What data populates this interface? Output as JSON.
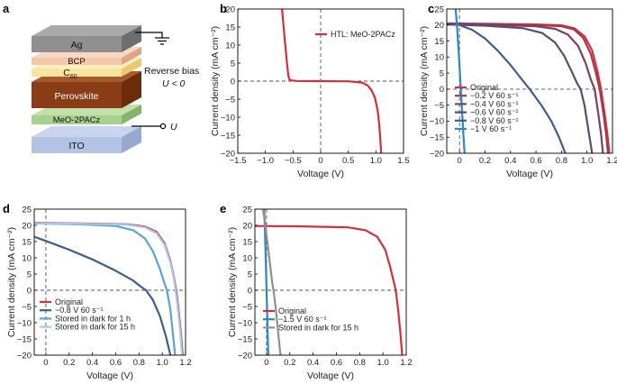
{
  "panel_labels": [
    "a",
    "b",
    "c",
    "d",
    "e"
  ],
  "schematic": {
    "layers": [
      "Ag",
      "BCP",
      "C",
      "Perovskite",
      "MeO-2PACz",
      "ITO"
    ],
    "c60_subscript": "60",
    "bias_line1": "Reverse bias",
    "bias_line2": "U < 0",
    "electrode_label": "U",
    "colors": {
      "Ag": "#8f8f8f",
      "BCP": "#f4c6aa",
      "C60": "#fbe3a0",
      "Perovskite": "#8a3c14",
      "MeO-2PACz": "#a9d18e",
      "ITO": "#b4c3e3"
    }
  },
  "chart_data": [
    {
      "id": "b",
      "type": "line",
      "xlabel": "Voltage (V)",
      "ylabel": "Current density (mA cm⁻²)",
      "xlim": [
        -1.5,
        1.5
      ],
      "ylim": [
        -20,
        20
      ],
      "xticks": [
        -1.5,
        -1.0,
        -0.5,
        0,
        0.5,
        1.0,
        1.5
      ],
      "xtick_labels": [
        "−1.5",
        "−1.0",
        "−0.5",
        "0",
        "0.5",
        "1.0",
        "1.5"
      ],
      "yticks": [
        -20,
        -15,
        -10,
        -5,
        0,
        5,
        10,
        15,
        20
      ],
      "ytick_labels": [
        "−20",
        "−15",
        "−10",
        "−5",
        "0",
        "5",
        "10",
        "15",
        "20"
      ],
      "series": [
        {
          "name": "HTL: MeO-2PACz",
          "color": "#d62f3a",
          "points": [
            [
              -0.7,
              20
            ],
            [
              -0.67,
              15
            ],
            [
              -0.64,
              10
            ],
            [
              -0.61,
              5
            ],
            [
              -0.585,
              1.5
            ],
            [
              -0.56,
              0.3
            ],
            [
              -0.45,
              0.05
            ],
            [
              0,
              0
            ],
            [
              0.5,
              -0.05
            ],
            [
              0.75,
              -0.4
            ],
            [
              0.85,
              -1.2
            ],
            [
              0.92,
              -2.5
            ],
            [
              0.98,
              -4.5
            ],
            [
              1.03,
              -8
            ],
            [
              1.06,
              -12
            ],
            [
              1.08,
              -16
            ],
            [
              1.095,
              -20
            ]
          ]
        }
      ]
    },
    {
      "id": "c",
      "type": "line",
      "xlabel": "Voltage (V)",
      "ylabel": "Current density (mA cm⁻²)",
      "xlim": [
        -0.1,
        1.2
      ],
      "ylim": [
        -20,
        25
      ],
      "xticks": [
        0,
        0.2,
        0.4,
        0.6,
        0.8,
        1.0,
        1.2
      ],
      "xtick_labels": [
        "0",
        "0.2",
        "0.4",
        "0.6",
        "0.8",
        "1.0",
        "1.2"
      ],
      "yticks": [
        -20,
        -15,
        -10,
        -5,
        0,
        5,
        10,
        15,
        20,
        25
      ],
      "ytick_labels": [
        "−20",
        "−15",
        "−10",
        "−5",
        "0",
        "5",
        "10",
        "15",
        "20",
        "25"
      ],
      "series": [
        {
          "name": "Original",
          "color": "#d62f3a",
          "points": [
            [
              -0.1,
              20.5
            ],
            [
              0.2,
              20.4
            ],
            [
              0.6,
              20.2
            ],
            [
              0.8,
              19.9
            ],
            [
              0.9,
              19
            ],
            [
              0.98,
              16.5
            ],
            [
              1.04,
              12
            ],
            [
              1.08,
              6
            ],
            [
              1.11,
              0
            ],
            [
              1.14,
              -8
            ],
            [
              1.16,
              -14
            ],
            [
              1.175,
              -20
            ]
          ]
        },
        {
          "name": "−0.2 V 60 s⁻¹",
          "color": "#a8374c",
          "points": [
            [
              -0.1,
              20.4
            ],
            [
              0.2,
              20.3
            ],
            [
              0.6,
              20
            ],
            [
              0.8,
              19.6
            ],
            [
              0.9,
              18.6
            ],
            [
              0.97,
              16
            ],
            [
              1.03,
              11
            ],
            [
              1.07,
              5
            ],
            [
              1.1,
              0
            ],
            [
              1.13,
              -8
            ],
            [
              1.15,
              -14
            ],
            [
              1.165,
              -20
            ]
          ]
        },
        {
          "name": "−0.4 V 60 s⁻¹",
          "color": "#7c3f5e",
          "points": [
            [
              -0.1,
              20.3
            ],
            [
              0.2,
              20.1
            ],
            [
              0.6,
              19.6
            ],
            [
              0.75,
              18.8
            ],
            [
              0.85,
              17
            ],
            [
              0.93,
              13.5
            ],
            [
              0.99,
              8
            ],
            [
              1.03,
              3
            ],
            [
              1.06,
              0
            ],
            [
              1.09,
              -8
            ],
            [
              1.11,
              -14
            ],
            [
              1.125,
              -20
            ]
          ]
        },
        {
          "name": "−0.6 V 60 s⁻¹",
          "color": "#5d4a73",
          "points": [
            [
              -0.1,
              20.2
            ],
            [
              0.2,
              19.8
            ],
            [
              0.5,
              19
            ],
            [
              0.65,
              17.5
            ],
            [
              0.75,
              14.5
            ],
            [
              0.82,
              10.5
            ],
            [
              0.88,
              5.5
            ],
            [
              0.92,
              2
            ],
            [
              0.95,
              0
            ],
            [
              0.98,
              -5
            ],
            [
              1.0,
              -10
            ],
            [
              1.02,
              -15
            ],
            [
              1.04,
              -20
            ]
          ]
        },
        {
          "name": "−0.8 V 60 s⁻¹",
          "color": "#3c5d91",
          "points": [
            [
              -0.05,
              20.5
            ],
            [
              0.0,
              20
            ],
            [
              0.1,
              18.5
            ],
            [
              0.2,
              15.8
            ],
            [
              0.3,
              12
            ],
            [
              0.4,
              7.5
            ],
            [
              0.5,
              2.5
            ],
            [
              0.55,
              0
            ],
            [
              0.65,
              -5.5
            ],
            [
              0.72,
              -10
            ],
            [
              0.78,
              -15
            ],
            [
              0.83,
              -20
            ]
          ]
        },
        {
          "name": "−1 V 60 s⁻¹",
          "color": "#2f86c4",
          "points": [
            [
              -0.03,
              25
            ],
            [
              -0.02,
              20
            ],
            [
              -0.01,
              14
            ],
            [
              0,
              7
            ],
            [
              0.01,
              0
            ],
            [
              0.02,
              -7
            ],
            [
              0.03,
              -14
            ],
            [
              0.04,
              -20
            ]
          ]
        }
      ]
    },
    {
      "id": "d",
      "type": "line",
      "xlabel": "Voltage (V)",
      "ylabel": "Current density (mA cm⁻²)",
      "xlim": [
        -0.1,
        1.2
      ],
      "ylim": [
        -20,
        25
      ],
      "xticks": [
        0,
        0.2,
        0.4,
        0.6,
        0.8,
        1.0,
        1.2
      ],
      "xtick_labels": [
        "0",
        "0.2",
        "0.4",
        "0.6",
        "0.8",
        "1.0",
        "1.2"
      ],
      "yticks": [
        -20,
        -15,
        -10,
        -5,
        0,
        5,
        10,
        15,
        20,
        25
      ],
      "ytick_labels": [
        "−20",
        "−15",
        "−10",
        "−5",
        "0",
        "5",
        "10",
        "15",
        "20",
        "25"
      ],
      "series": [
        {
          "name": "Original",
          "color": "#d62f3a",
          "points": [
            [
              -0.1,
              20.8
            ],
            [
              0.3,
              20.6
            ],
            [
              0.7,
              20.3
            ],
            [
              0.85,
              19.6
            ],
            [
              0.95,
              18
            ],
            [
              1.02,
              14.5
            ],
            [
              1.07,
              9
            ],
            [
              1.1,
              4
            ],
            [
              1.12,
              0
            ],
            [
              1.14,
              -6
            ],
            [
              1.16,
              -13
            ],
            [
              1.175,
              -20
            ]
          ]
        },
        {
          "name": "−0.8 V 60 s⁻¹",
          "color": "#3c5d91",
          "points": [
            [
              -0.1,
              16.5
            ],
            [
              0,
              15.2
            ],
            [
              0.2,
              12.5
            ],
            [
              0.4,
              9.5
            ],
            [
              0.6,
              6
            ],
            [
              0.75,
              3
            ],
            [
              0.82,
              1
            ],
            [
              0.86,
              0
            ],
            [
              0.92,
              -3
            ],
            [
              0.98,
              -8
            ],
            [
              1.03,
              -14
            ],
            [
              1.07,
              -20
            ]
          ]
        },
        {
          "name": "Stored in dark for 1 h",
          "color": "#5aa3d8",
          "points": [
            [
              -0.1,
              20.6
            ],
            [
              0.3,
              20.3
            ],
            [
              0.6,
              19.8
            ],
            [
              0.75,
              18.5
            ],
            [
              0.85,
              16
            ],
            [
              0.92,
              12
            ],
            [
              0.98,
              6.5
            ],
            [
              1.02,
              2
            ],
            [
              1.04,
              0
            ],
            [
              1.07,
              -6
            ],
            [
              1.09,
              -13
            ],
            [
              1.11,
              -20
            ]
          ]
        },
        {
          "name": "Stored in dark for 15 h",
          "color": "#a9c9ea",
          "points": [
            [
              -0.1,
              20.7
            ],
            [
              0.3,
              20.5
            ],
            [
              0.7,
              20.2
            ],
            [
              0.85,
              19.4
            ],
            [
              0.95,
              17.6
            ],
            [
              1.02,
              14
            ],
            [
              1.07,
              8.5
            ],
            [
              1.1,
              3.5
            ],
            [
              1.115,
              0
            ],
            [
              1.135,
              -6
            ],
            [
              1.155,
              -13
            ],
            [
              1.17,
              -20
            ]
          ]
        }
      ]
    },
    {
      "id": "e",
      "type": "line",
      "xlabel": "Voltage (V)",
      "ylabel": "Current density (mA cm⁻²)",
      "xlim": [
        -0.1,
        1.2
      ],
      "ylim": [
        -20,
        25
      ],
      "xticks": [
        0,
        0.2,
        0.4,
        0.6,
        0.8,
        1.0,
        1.2
      ],
      "xtick_labels": [
        "0",
        "0.2",
        "0.4",
        "0.6",
        "0.8",
        "1.0",
        "1.2"
      ],
      "yticks": [
        -20,
        -15,
        -10,
        -5,
        0,
        5,
        10,
        15,
        20,
        25
      ],
      "ytick_labels": [
        "−20",
        "−15",
        "−10",
        "−5",
        "0",
        "5",
        "10",
        "15",
        "20",
        "25"
      ],
      "series": [
        {
          "name": "Original",
          "color": "#d62f3a",
          "points": [
            [
              -0.1,
              19.8
            ],
            [
              0.3,
              19.7
            ],
            [
              0.7,
              19.4
            ],
            [
              0.85,
              18.5
            ],
            [
              0.95,
              16.5
            ],
            [
              1.02,
              12.5
            ],
            [
              1.06,
              7.5
            ],
            [
              1.09,
              3
            ],
            [
              1.11,
              0
            ],
            [
              1.13,
              -6
            ],
            [
              1.15,
              -13
            ],
            [
              1.165,
              -20
            ]
          ]
        },
        {
          "name": "−1.5 V 60 s⁻¹",
          "color": "#2f86c4",
          "points": [
            [
              -0.02,
              25
            ],
            [
              -0.015,
              20
            ],
            [
              -0.01,
              14
            ],
            [
              -0.005,
              7
            ],
            [
              0,
              0
            ],
            [
              0.005,
              -7
            ],
            [
              0.01,
              -14
            ],
            [
              0.015,
              -20
            ]
          ]
        },
        {
          "name": "Stored in dark for 15 h",
          "color": "#8f8f8f",
          "points": [
            [
              -0.03,
              25
            ],
            [
              -0.01,
              20
            ],
            [
              0.01,
              14
            ],
            [
              0.03,
              8
            ],
            [
              0.05,
              2
            ],
            [
              0.06,
              0
            ],
            [
              0.08,
              -6
            ],
            [
              0.1,
              -13
            ],
            [
              0.12,
              -20
            ]
          ]
        }
      ]
    }
  ]
}
